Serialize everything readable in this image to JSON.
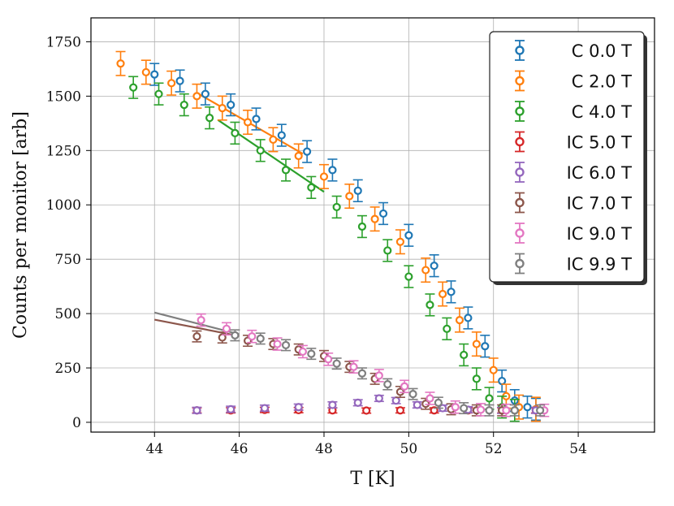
{
  "chart_data": {
    "type": "scatter",
    "title": "",
    "xlabel": "T [K]",
    "ylabel": "Counts per monitor [arb]",
    "xlim": [
      42.5,
      55.8
    ],
    "ylim": [
      -45,
      1860
    ],
    "xticks": [
      44,
      46,
      48,
      50,
      52,
      54
    ],
    "yticks": [
      0,
      250,
      500,
      750,
      1000,
      1250,
      1500,
      1750
    ],
    "xtick_labels": [
      "44",
      "46",
      "48",
      "50",
      "52",
      "54"
    ],
    "ytick_labels": [
      "0",
      "250",
      "500",
      "750",
      "1000",
      "1250",
      "1500",
      "1750"
    ],
    "grid": true,
    "legend_position": "top-right",
    "series": [
      {
        "name": "C 0.0 T",
        "color": "#1f77b4",
        "x": [
          44.0,
          44.6,
          45.2,
          45.8,
          46.4,
          47.0,
          47.6,
          48.2,
          48.8,
          49.4,
          50.0,
          50.6,
          51.0,
          51.4,
          51.8,
          52.2,
          52.5,
          52.8,
          53.0
        ],
        "y": [
          1600,
          1570,
          1510,
          1460,
          1395,
          1320,
          1245,
          1160,
          1065,
          960,
          860,
          720,
          600,
          480,
          350,
          190,
          100,
          70,
          60
        ],
        "err": 50
      },
      {
        "name": "C 2.0 T",
        "color": "#ff7f0e",
        "x": [
          43.2,
          43.8,
          44.4,
          45.0,
          45.6,
          46.2,
          46.8,
          47.4,
          48.0,
          48.6,
          49.2,
          49.8,
          50.4,
          50.8,
          51.2,
          51.6,
          52.0,
          52.3,
          52.6,
          53.0
        ],
        "y": [
          1650,
          1610,
          1560,
          1500,
          1445,
          1380,
          1300,
          1225,
          1130,
          1040,
          935,
          830,
          700,
          590,
          470,
          360,
          240,
          120,
          70,
          60
        ],
        "err": 55
      },
      {
        "name": "C 4.0 T",
        "color": "#2ca02c",
        "x": [
          43.5,
          44.1,
          44.7,
          45.3,
          45.9,
          46.5,
          47.1,
          47.7,
          48.3,
          48.9,
          49.5,
          50.0,
          50.5,
          50.9,
          51.3,
          51.6,
          51.9,
          52.2,
          52.5
        ],
        "y": [
          1540,
          1510,
          1460,
          1400,
          1330,
          1250,
          1160,
          1080,
          990,
          900,
          790,
          670,
          540,
          430,
          310,
          200,
          110,
          70,
          55
        ],
        "err": 50
      },
      {
        "name": "IC 5.0 T",
        "color": "#d62728",
        "x": [
          45.0,
          45.8,
          46.6,
          47.4,
          48.2,
          49.0,
          49.8,
          50.6,
          51.4,
          52.2,
          53.0
        ],
        "y": [
          55,
          55,
          57,
          56,
          55,
          54,
          55,
          55,
          55,
          55,
          55
        ],
        "err": 12
      },
      {
        "name": "IC 6.0 T",
        "color": "#9467bd",
        "x": [
          45.0,
          45.8,
          46.6,
          47.4,
          48.2,
          48.8,
          49.3,
          49.7,
          50.2,
          50.8,
          51.4,
          52.2,
          53.0
        ],
        "y": [
          55,
          60,
          65,
          70,
          80,
          90,
          110,
          100,
          80,
          65,
          58,
          55,
          55
        ],
        "err": 14
      },
      {
        "name": "IC 7.0 T",
        "color": "#8c564b",
        "x": [
          45.0,
          45.6,
          46.2,
          46.8,
          47.4,
          48.0,
          48.6,
          49.2,
          49.8,
          50.4,
          51.0,
          51.6,
          52.2
        ],
        "y": [
          395,
          390,
          375,
          360,
          335,
          305,
          255,
          200,
          140,
          85,
          60,
          55,
          55
        ],
        "err": 25
      },
      {
        "name": "IC 9.0 T",
        "color": "#e377c2",
        "x": [
          45.1,
          45.7,
          46.3,
          46.9,
          47.5,
          48.1,
          48.7,
          49.3,
          49.9,
          50.5,
          51.1,
          51.7,
          52.3,
          53.2
        ],
        "y": [
          470,
          430,
          395,
          360,
          325,
          290,
          255,
          215,
          165,
          110,
          70,
          58,
          55,
          55
        ],
        "err": 28
      },
      {
        "name": "IC 9.9 T",
        "color": "#7f7f7f",
        "x": [
          45.9,
          46.5,
          47.1,
          47.7,
          48.3,
          48.9,
          49.5,
          50.1,
          50.7,
          51.3,
          51.9,
          52.5,
          53.1
        ],
        "y": [
          400,
          385,
          355,
          315,
          270,
          225,
          175,
          130,
          90,
          65,
          55,
          55,
          55
        ],
        "err": 25
      }
    ],
    "fit_lines": [
      {
        "series": "IC 7.0 T",
        "color": "#8c564b",
        "x": [
          44.0,
          46.0
        ],
        "y": [
          472,
          397
        ]
      },
      {
        "series": "IC 9.9 T",
        "color": "#7f7f7f",
        "x": [
          44.0,
          46.0
        ],
        "y": [
          505,
          405
        ]
      },
      {
        "series": "C 2.0 T",
        "color": "#ff7f0e",
        "x": [
          45.0,
          47.5
        ],
        "y": [
          1515,
          1235
        ]
      },
      {
        "series": "C 4.0 T",
        "color": "#2ca02c",
        "x": [
          45.5,
          48.0
        ],
        "y": [
          1390,
          1060
        ]
      }
    ]
  }
}
